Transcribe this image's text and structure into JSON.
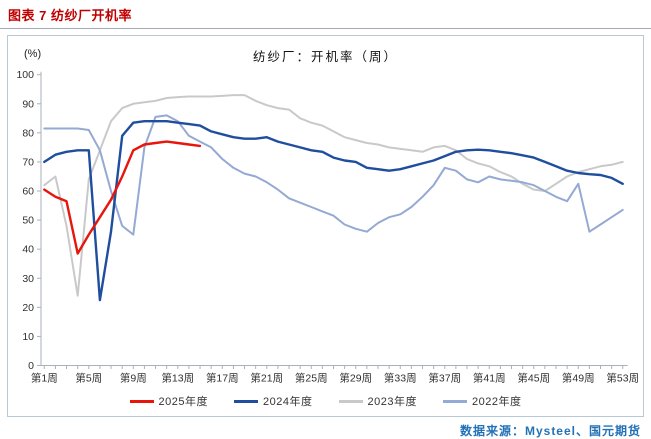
{
  "page": {
    "title": "图表 7  纺纱厂开机率",
    "source": "数据来源：Mysteel、国元期货"
  },
  "chart_data": {
    "type": "line",
    "title": "纺纱厂：开机率（周）",
    "y_unit_label": "(%)",
    "ylim": [
      0,
      100
    ],
    "y_tick_step": 10,
    "x_weeks": 53,
    "x_tick_label_every": 4,
    "x_tick_labels": [
      "第1周",
      "第5周",
      "第9周",
      "第13周",
      "第17周",
      "第21周",
      "第25周",
      "第29周",
      "第33周",
      "第37周",
      "第41周",
      "第45周",
      "第49周",
      "第53周"
    ],
    "grid": false,
    "legend_position": "bottom",
    "axis_color": "#a8b2ba",
    "series": [
      {
        "name": "2025年度",
        "color": "#e8150d",
        "width": 2.4,
        "start_week": 1,
        "values": [
          60.5,
          58,
          56.5,
          38.5,
          45,
          51,
          57,
          65,
          74,
          76,
          76.5,
          77,
          76.5,
          76,
          75.5
        ]
      },
      {
        "name": "2024年度",
        "color": "#1f4e9e",
        "width": 2.4,
        "start_week": 1,
        "values": [
          70,
          72.5,
          73.5,
          74,
          74,
          22.5,
          46,
          79,
          83.5,
          84,
          84,
          84,
          83.5,
          83,
          82.5,
          80.5,
          79.5,
          78.5,
          78,
          78,
          78.5,
          77,
          76,
          75,
          74,
          73.5,
          71.5,
          70.5,
          70,
          68,
          67.5,
          67,
          67.5,
          68.5,
          69.5,
          70.5,
          72,
          73.5,
          74,
          74.2,
          74,
          73.5,
          73,
          72.3,
          71.5,
          70,
          68.5,
          67,
          66.2,
          65.8,
          65.5,
          64.5,
          62.5
        ]
      },
      {
        "name": "2023年度",
        "color": "#c9c9c9",
        "width": 2,
        "start_week": 1,
        "values": [
          62,
          65,
          48,
          24,
          64,
          74,
          84,
          88.5,
          90,
          90.5,
          91,
          92,
          92.3,
          92.5,
          92.5,
          92.5,
          92.7,
          93,
          93,
          91,
          89.5,
          88.5,
          88,
          85,
          83.5,
          82.5,
          80.5,
          78.5,
          77.5,
          76.5,
          76,
          75,
          74.5,
          74,
          73.5,
          75,
          75.5,
          74,
          71,
          69.5,
          68.5,
          66.5,
          65,
          62.5,
          60.5,
          60,
          62.5,
          65,
          66.5,
          67.5,
          68.5,
          69,
          70
        ]
      },
      {
        "name": "2022年度",
        "color": "#94a9d3",
        "width": 2,
        "start_week": 1,
        "values": [
          81.5,
          81.5,
          81.5,
          81.5,
          81,
          74,
          60,
          48,
          45,
          75,
          85.5,
          86,
          84,
          79,
          77,
          75,
          71,
          68,
          66,
          65,
          63,
          60.5,
          57.5,
          56,
          54.5,
          53,
          51.5,
          48.5,
          47,
          46,
          49,
          51,
          52,
          54.5,
          58,
          62,
          68,
          67,
          64,
          63,
          65,
          64,
          63.5,
          63,
          62,
          60,
          58,
          56.5,
          62.5,
          46,
          48.5,
          51,
          53.5
        ]
      }
    ]
  }
}
